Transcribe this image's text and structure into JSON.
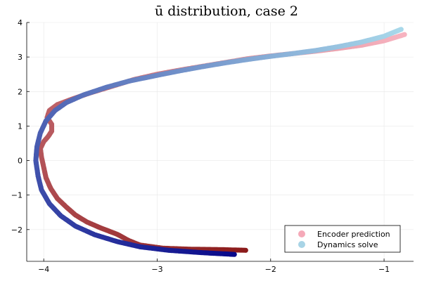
{
  "chart_data": {
    "type": "scatter",
    "title": "ū distribution, case 2",
    "xlabel": "",
    "ylabel": "",
    "xlim": [
      -4.15,
      -0.74
    ],
    "ylim": [
      -2.92,
      4.0
    ],
    "xticks": [
      -4,
      -3,
      -2,
      -1
    ],
    "xtick_labels": [
      "−4",
      "−3",
      "−2",
      "−1"
    ],
    "yticks": [
      -2,
      -1,
      0,
      1,
      2,
      3,
      4
    ],
    "ytick_labels": [
      "−2",
      "−1",
      "0",
      "1",
      "2",
      "3",
      "4"
    ],
    "grid": true,
    "legend_position": "bottom-right",
    "series": [
      {
        "name": "Encoder prediction",
        "legend_color": "#f5a9b8",
        "color_start": "#8b1a1a",
        "color_end": "#f7b3c0",
        "points": [
          [
            -2.22,
            -2.6
          ],
          [
            -2.45,
            -2.58
          ],
          [
            -2.7,
            -2.57
          ],
          [
            -2.95,
            -2.54
          ],
          [
            -3.15,
            -2.45
          ],
          [
            -3.25,
            -2.32
          ],
          [
            -3.35,
            -2.14
          ],
          [
            -3.5,
            -1.95
          ],
          [
            -3.62,
            -1.78
          ],
          [
            -3.72,
            -1.58
          ],
          [
            -3.8,
            -1.35
          ],
          [
            -3.88,
            -1.1
          ],
          [
            -3.94,
            -0.8
          ],
          [
            -3.98,
            -0.5
          ],
          [
            -4.0,
            -0.2
          ],
          [
            -4.02,
            0.1
          ],
          [
            -4.03,
            0.35
          ],
          [
            -4.0,
            0.55
          ],
          [
            -3.96,
            0.7
          ],
          [
            -3.93,
            0.85
          ],
          [
            -3.93,
            1.05
          ],
          [
            -3.97,
            1.25
          ],
          [
            -3.95,
            1.45
          ],
          [
            -3.88,
            1.62
          ],
          [
            -3.75,
            1.78
          ],
          [
            -3.6,
            1.95
          ],
          [
            -3.4,
            2.15
          ],
          [
            -3.2,
            2.35
          ],
          [
            -3.0,
            2.5
          ],
          [
            -2.8,
            2.62
          ],
          [
            -2.6,
            2.73
          ],
          [
            -2.4,
            2.84
          ],
          [
            -2.2,
            2.95
          ],
          [
            -2.0,
            3.03
          ],
          [
            -1.8,
            3.1
          ],
          [
            -1.6,
            3.17
          ],
          [
            -1.4,
            3.25
          ],
          [
            -1.2,
            3.34
          ],
          [
            -1.0,
            3.47
          ],
          [
            -0.82,
            3.65
          ]
        ]
      },
      {
        "name": "Dynamics solve",
        "legend_color": "#a8d4e6",
        "color_start": "#08088a",
        "color_end": "#a8d8ea",
        "points": [
          [
            -2.32,
            -2.72
          ],
          [
            -2.6,
            -2.67
          ],
          [
            -2.9,
            -2.6
          ],
          [
            -3.15,
            -2.5
          ],
          [
            -3.35,
            -2.35
          ],
          [
            -3.55,
            -2.15
          ],
          [
            -3.72,
            -1.9
          ],
          [
            -3.85,
            -1.6
          ],
          [
            -3.95,
            -1.25
          ],
          [
            -4.02,
            -0.85
          ],
          [
            -4.05,
            -0.45
          ],
          [
            -4.07,
            0.0
          ],
          [
            -4.06,
            0.4
          ],
          [
            -4.03,
            0.8
          ],
          [
            -3.98,
            1.15
          ],
          [
            -3.9,
            1.45
          ],
          [
            -3.8,
            1.68
          ],
          [
            -3.65,
            1.9
          ],
          [
            -3.45,
            2.12
          ],
          [
            -3.25,
            2.3
          ],
          [
            -3.0,
            2.47
          ],
          [
            -2.8,
            2.6
          ],
          [
            -2.6,
            2.72
          ],
          [
            -2.4,
            2.83
          ],
          [
            -2.2,
            2.93
          ],
          [
            -2.0,
            3.02
          ],
          [
            -1.8,
            3.1
          ],
          [
            -1.6,
            3.19
          ],
          [
            -1.4,
            3.3
          ],
          [
            -1.2,
            3.43
          ],
          [
            -1.0,
            3.6
          ],
          [
            -0.85,
            3.8
          ]
        ]
      }
    ]
  }
}
